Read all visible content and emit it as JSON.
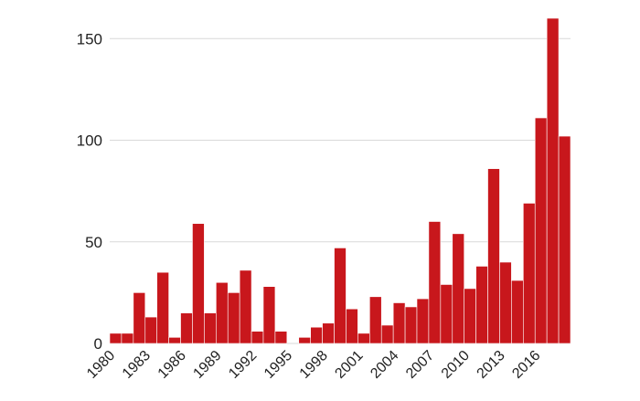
{
  "chart_data": {
    "type": "bar",
    "title": "",
    "xlabel": "",
    "ylabel": "",
    "ylim": [
      0,
      160
    ],
    "grid": true,
    "legend": "none",
    "bar_color": "#c8171c",
    "yticks": [
      0,
      50,
      100,
      150
    ],
    "ytick_labels": [
      "0",
      "50",
      "100",
      "150"
    ],
    "xtick_labels": [
      "1980",
      "1983",
      "1986",
      "1989",
      "1992",
      "1995",
      "1998",
      "2001",
      "2004",
      "2007",
      "2010",
      "2013",
      "2016"
    ],
    "categories": [
      1980,
      1981,
      1982,
      1983,
      1984,
      1985,
      1986,
      1987,
      1988,
      1989,
      1990,
      1991,
      1992,
      1993,
      1994,
      1995,
      1996,
      1997,
      1998,
      1999,
      2000,
      2001,
      2002,
      2003,
      2004,
      2005,
      2006,
      2007,
      2008,
      2009,
      2010,
      2011,
      2012,
      2013,
      2014,
      2015,
      2016,
      2017,
      2018
    ],
    "values": [
      5,
      5,
      25,
      13,
      35,
      3,
      15,
      59,
      15,
      30,
      25,
      36,
      6,
      28,
      6,
      0,
      3,
      8,
      10,
      47,
      17,
      5,
      23,
      9,
      20,
      18,
      22,
      60,
      29,
      54,
      27,
      38,
      86,
      40,
      31,
      69,
      111,
      160,
      102
    ]
  }
}
